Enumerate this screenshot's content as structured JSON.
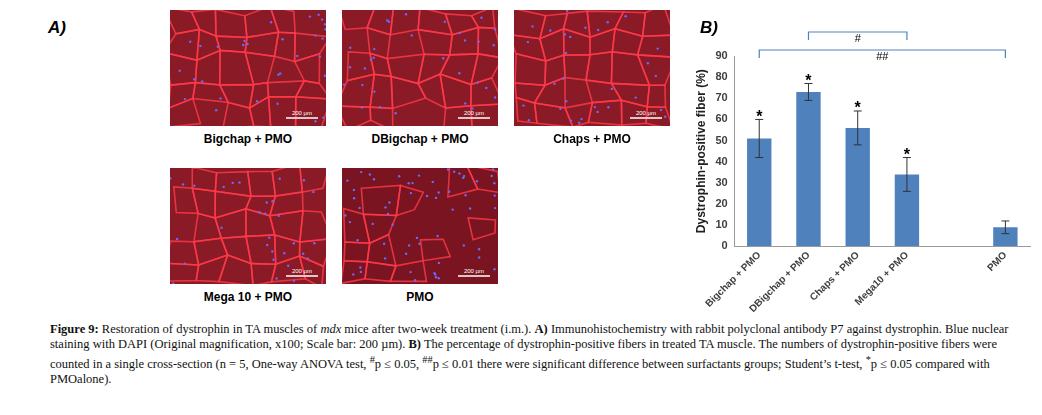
{
  "figure": {
    "panel_a": {
      "label": "A)",
      "scale_bar": "200 µm",
      "images": [
        "Bigchap + PMO",
        "DBigchap + PMO",
        "Chaps + PMO",
        "Mega 10 + PMO",
        "PMO"
      ]
    },
    "panel_b": {
      "label": "B)"
    },
    "caption": [
      {
        "text": "Figure 9:",
        "style": "bold"
      },
      {
        "text": " Restoration of dystrophin in TA muscles of "
      },
      {
        "text": "mdx",
        "style": "italic"
      },
      {
        "text": " mice after two-week treatment (i.m.). "
      },
      {
        "text": "A)",
        "style": "bold"
      },
      {
        "text": " Immunohistochemistry with rabbit polyclonal antibody P7 against dystrophin. Blue nuclear staining with DAPI (Original magnification, x100; Scale bar: 200 µm). "
      },
      {
        "text": "B)",
        "style": "bold"
      },
      {
        "text": " The percentage of dystrophin-positive fibers in treated TA muscle. The numbers of dystrophin-positive fibers were counted in a single cross-section (n = 5, One-way ANOVA test, "
      },
      {
        "text": "#",
        "style": "sup"
      },
      {
        "text": "p ≤ 0.05, "
      },
      {
        "text": "##",
        "style": "sup"
      },
      {
        "text": "p ≤ 0.01 there were significant difference between surfactants groups; Student’s t-test, "
      },
      {
        "text": "*",
        "style": "sup"
      },
      {
        "text": "p ≤ 0.05 compared with PMOalone)."
      }
    ]
  },
  "chart_data": {
    "type": "bar",
    "y_label": "Dystrophin-positive fiber (%)",
    "categories": [
      "Bigchap + PMO",
      "DBigchap + PMO",
      "Chaps + PMO",
      "Mega10 + PMO",
      null,
      "PMO"
    ],
    "values": [
      51,
      73,
      56,
      34,
      null,
      9
    ],
    "errors": [
      9,
      4,
      8,
      8,
      null,
      3
    ],
    "color": "#4f81bd",
    "ylim": [
      0,
      90
    ],
    "yticks": [
      0,
      10,
      20,
      30,
      40,
      50,
      60,
      70,
      80,
      90
    ],
    "grid": false,
    "annotations": [
      {
        "text": "*",
        "category": "Bigchap + PMO"
      },
      {
        "text": "*",
        "category": "DBigchap + PMO"
      },
      {
        "text": "*",
        "category": "Chaps + PMO"
      },
      {
        "text": "*",
        "category": "Mega10 + PMO"
      }
    ],
    "brackets": [
      {
        "text": "#",
        "from": "DBigchap + PMO",
        "to": "Mega10 + PMO"
      },
      {
        "text": "##",
        "from": "Bigchap + PMO",
        "to": "PMO"
      }
    ]
  }
}
